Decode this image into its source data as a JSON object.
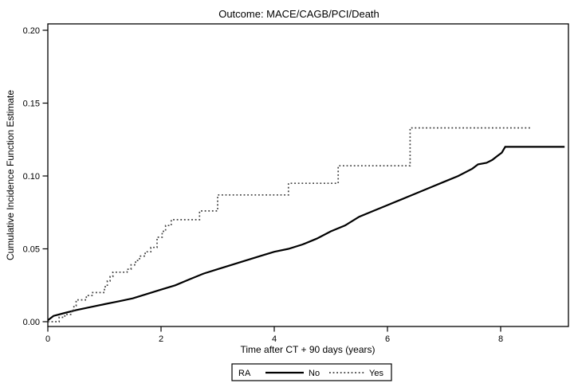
{
  "page": {
    "background_color": "#ffffff",
    "foreground_color": "#000000"
  },
  "chart_data": {
    "type": "line",
    "title": "Outcome: MACE/CAGB/PCI/Death",
    "xlabel": "Time after CT + 90 days (years)",
    "ylabel": "Cumulative Incidence Function Estimate",
    "xlim": [
      0,
      9.2
    ],
    "ylim": [
      0,
      0.2
    ],
    "xtick_labels": [
      "0",
      "2",
      "4",
      "6",
      "8"
    ],
    "xtick_values": [
      0,
      2,
      4,
      6,
      8
    ],
    "ytick_labels": [
      "0.00",
      "0.05",
      "0.10",
      "0.15",
      "0.20"
    ],
    "ytick_values": [
      0,
      0.05,
      0.1,
      0.15,
      0.2
    ],
    "grid": false,
    "frame": true,
    "legend": {
      "title": "RA",
      "position": "bottom-center",
      "boxed": true,
      "entries": [
        {
          "label": "No",
          "line_style": "solid",
          "color": "#000000"
        },
        {
          "label": "Yes",
          "line_style": "dotted",
          "color": "#3f3f3f"
        }
      ]
    },
    "series": [
      {
        "name": "No",
        "line_style": "solid",
        "color": "#000000",
        "stroke_width": 2.2,
        "interpolation": "linear",
        "points": [
          [
            0,
            0.001
          ],
          [
            0.1,
            0.004
          ],
          [
            0.3,
            0.006
          ],
          [
            0.5,
            0.008
          ],
          [
            0.75,
            0.01
          ],
          [
            1.0,
            0.012
          ],
          [
            1.25,
            0.014
          ],
          [
            1.5,
            0.016
          ],
          [
            1.75,
            0.019
          ],
          [
            2.0,
            0.022
          ],
          [
            2.25,
            0.025
          ],
          [
            2.5,
            0.029
          ],
          [
            2.75,
            0.033
          ],
          [
            3.0,
            0.036
          ],
          [
            3.25,
            0.039
          ],
          [
            3.5,
            0.042
          ],
          [
            3.75,
            0.045
          ],
          [
            4.0,
            0.048
          ],
          [
            4.25,
            0.05
          ],
          [
            4.5,
            0.053
          ],
          [
            4.75,
            0.057
          ],
          [
            5.0,
            0.062
          ],
          [
            5.25,
            0.066
          ],
          [
            5.5,
            0.072
          ],
          [
            5.75,
            0.076
          ],
          [
            6.0,
            0.08
          ],
          [
            6.25,
            0.084
          ],
          [
            6.5,
            0.088
          ],
          [
            6.75,
            0.092
          ],
          [
            7.0,
            0.096
          ],
          [
            7.25,
            0.1
          ],
          [
            7.5,
            0.105
          ],
          [
            7.6,
            0.108
          ],
          [
            7.75,
            0.109
          ],
          [
            7.85,
            0.111
          ],
          [
            7.95,
            0.114
          ],
          [
            8.02,
            0.116
          ],
          [
            8.08,
            0.12
          ],
          [
            9.13,
            0.12
          ]
        ]
      },
      {
        "name": "Yes",
        "line_style": "dotted",
        "color": "#3f3f3f",
        "stroke_width": 1.7,
        "interpolation": "step-after",
        "points": [
          [
            0,
            0.0
          ],
          [
            0.2,
            0.003
          ],
          [
            0.3,
            0.005
          ],
          [
            0.42,
            0.008
          ],
          [
            0.46,
            0.011
          ],
          [
            0.5,
            0.015
          ],
          [
            0.68,
            0.018
          ],
          [
            0.78,
            0.02
          ],
          [
            1.0,
            0.024
          ],
          [
            1.05,
            0.028
          ],
          [
            1.1,
            0.031
          ],
          [
            1.15,
            0.034
          ],
          [
            1.4,
            0.036
          ],
          [
            1.47,
            0.039
          ],
          [
            1.55,
            0.042
          ],
          [
            1.62,
            0.045
          ],
          [
            1.72,
            0.048
          ],
          [
            1.82,
            0.051
          ],
          [
            1.93,
            0.058
          ],
          [
            2.02,
            0.062
          ],
          [
            2.08,
            0.066
          ],
          [
            2.18,
            0.07
          ],
          [
            2.68,
            0.076
          ],
          [
            3.0,
            0.087
          ],
          [
            4.25,
            0.095
          ],
          [
            5.13,
            0.107
          ],
          [
            6.4,
            0.133
          ],
          [
            8.52,
            0.133
          ]
        ]
      }
    ]
  }
}
